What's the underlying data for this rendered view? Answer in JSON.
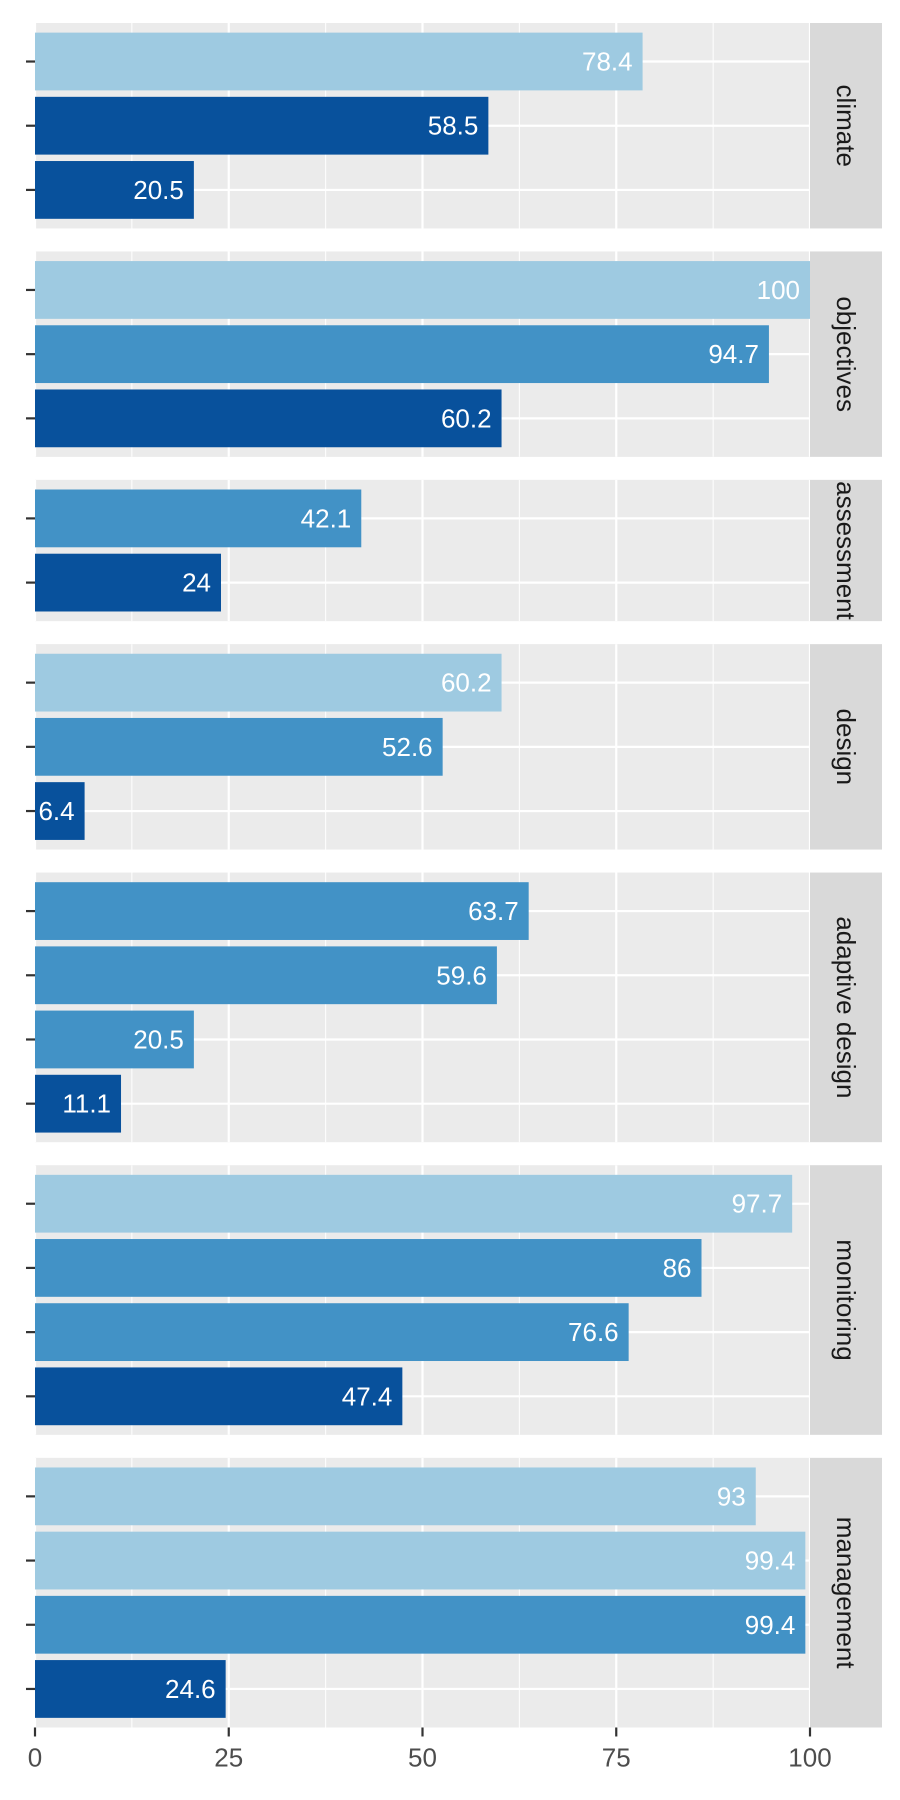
{
  "chart_data": {
    "type": "bar",
    "orientation": "horizontal",
    "xlim": [
      0,
      100
    ],
    "xticks": [
      0,
      25,
      50,
      75,
      100
    ],
    "grid": true,
    "facets": [
      {
        "label": "climate",
        "values": [
          78.4,
          58.5,
          20.5
        ],
        "colors": [
          "#9ecae1",
          "#08519c",
          "#08519c"
        ]
      },
      {
        "label": "objectives",
        "values": [
          100,
          94.7,
          60.2
        ],
        "colors": [
          "#9ecae1",
          "#4292c6",
          "#08519c"
        ]
      },
      {
        "label": "assessment",
        "values": [
          42.1,
          24
        ],
        "colors": [
          "#4292c6",
          "#08519c"
        ]
      },
      {
        "label": "design",
        "values": [
          60.2,
          52.6,
          6.4
        ],
        "colors": [
          "#9ecae1",
          "#4292c6",
          "#08519c"
        ]
      },
      {
        "label": "adaptive design",
        "values": [
          63.7,
          59.6,
          20.5,
          11.1
        ],
        "colors": [
          "#4292c6",
          "#4292c6",
          "#4292c6",
          "#08519c"
        ]
      },
      {
        "label": "monitoring",
        "values": [
          97.7,
          86,
          76.6,
          47.4
        ],
        "colors": [
          "#9ecae1",
          "#4292c6",
          "#4292c6",
          "#08519c"
        ]
      },
      {
        "label": "management",
        "values": [
          93,
          99.4,
          99.4,
          24.6
        ],
        "colors": [
          "#9ecae1",
          "#9ecae1",
          "#4292c6",
          "#08519c"
        ]
      }
    ]
  }
}
